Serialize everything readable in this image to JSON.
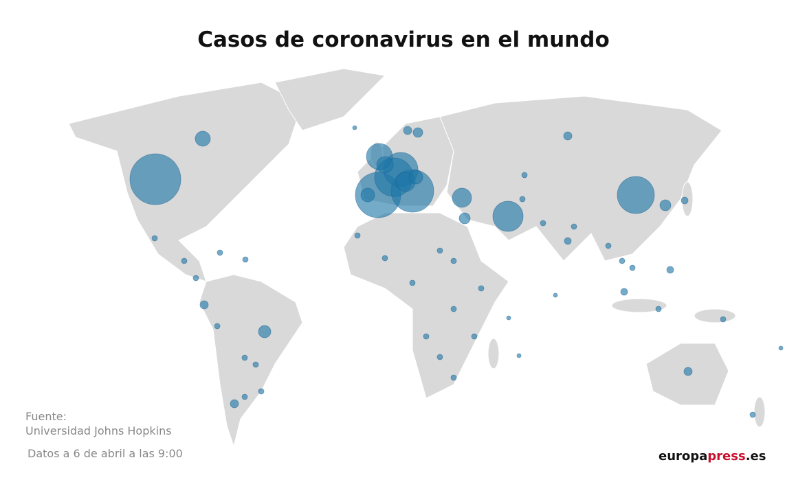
{
  "header": {
    "title": "Casos de coronavirus en el mundo"
  },
  "source": {
    "label": "Fuente:",
    "name": "Universidad Johns Hopkins"
  },
  "note": "Datos a 6 de abril a las 9:00",
  "logo": [
    "europa",
    "press",
    ".es"
  ]
}
